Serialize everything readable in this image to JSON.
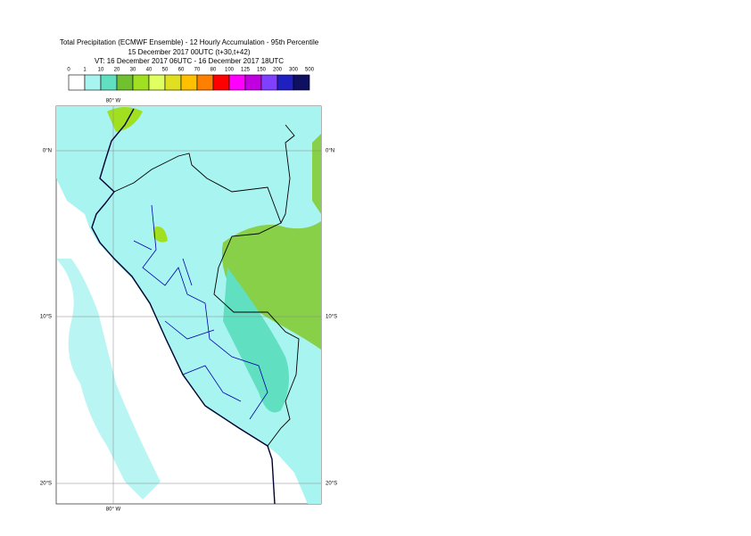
{
  "header": {
    "title": "Total Precipitation (ECMWF Ensemble) - 12 Hourly Accumulation - 95th Percentile",
    "run": "15 December 2017 00UTC (t+30,t+42)",
    "valid": "VT: 16 December 2017 06UTC - 16 December 2017 18UTC"
  },
  "colorbar": {
    "labels": [
      0,
      1,
      10,
      20,
      30,
      40,
      50,
      60,
      70,
      80,
      100,
      125,
      150,
      200,
      300,
      500
    ],
    "colors": [
      "#ffffff",
      "#a8f4f0",
      "#60e0c0",
      "#70c030",
      "#a0e020",
      "#e0ff60",
      "#e0e020",
      "#ffc000",
      "#ff8000",
      "#ff0000",
      "#ff00ff",
      "#c000e0",
      "#8040ff",
      "#2020c0",
      "#101060"
    ]
  },
  "map": {
    "lon_labels": [
      "80° W"
    ],
    "lat_labels": [
      "0°N",
      "10°S",
      "20°S"
    ]
  }
}
